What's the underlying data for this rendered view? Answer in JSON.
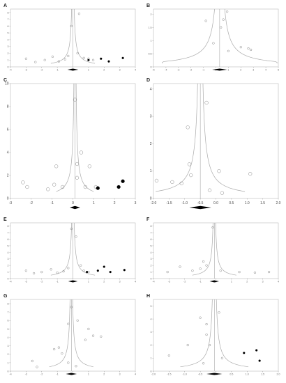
{
  "chart_data": [
    {
      "type": "scatter",
      "label": "A",
      "xticks": [
        "-4",
        "-3",
        "-2",
        "-1",
        "0",
        "1",
        "2",
        "3",
        "4"
      ],
      "yticks": [
        "0",
        "1",
        "2",
        "3",
        "4",
        "5",
        "6",
        "7",
        "8"
      ],
      "xlim": [
        -4,
        4
      ],
      "ylim": [
        0,
        8.5
      ],
      "center": 0,
      "open": [
        [
          -3.0,
          1.2
        ],
        [
          -2.4,
          0.7
        ],
        [
          -1.8,
          1.0
        ],
        [
          -1.3,
          1.5
        ],
        [
          -0.9,
          0.8
        ],
        [
          -0.5,
          1.1
        ],
        [
          -0.3,
          1.6
        ],
        [
          -0.1,
          6.0
        ],
        [
          0.3,
          2.0
        ],
        [
          0.4,
          7.8
        ],
        [
          0.7,
          1.3
        ],
        [
          1.0,
          1.2
        ],
        [
          1.3,
          1.0
        ]
      ],
      "filled": [
        [
          1.0,
          1.0
        ],
        [
          1.8,
          1.2
        ],
        [
          2.3,
          0.8
        ],
        [
          3.2,
          1.3
        ]
      ],
      "diamond": {
        "x": 0,
        "halfwidth": 0.35
      }
    },
    {
      "type": "scatter",
      "label": "B",
      "xticks": [
        "-5",
        "-4",
        "-3",
        "-2",
        "-1",
        "0",
        "1",
        "2",
        "3",
        "4",
        "5"
      ],
      "yticks": [
        "0",
        "0.5",
        "1",
        "1.5",
        "2"
      ],
      "xlim": [
        -5,
        5
      ],
      "ylim": [
        0,
        2.2
      ],
      "center": 0.3,
      "open": [
        [
          -0.8,
          1.75
        ],
        [
          0.4,
          1.5
        ],
        [
          0.6,
          1.8
        ],
        [
          -0.2,
          0.9
        ],
        [
          0.9,
          2.1
        ],
        [
          1.0,
          0.6
        ],
        [
          2.0,
          0.75
        ],
        [
          2.6,
          0.7
        ],
        [
          2.8,
          0.65
        ]
      ],
      "filled": [],
      "diamond": {
        "x": 0.3,
        "halfwidth": 0.6
      }
    },
    {
      "type": "scatter",
      "label": "C",
      "xticks": [
        "-3",
        "-2",
        "-1",
        "0",
        "1",
        "2",
        "3"
      ],
      "yticks": [
        "0",
        "2",
        "4",
        "6",
        "8",
        "10"
      ],
      "xlim": [
        -3,
        3
      ],
      "ylim": [
        0,
        10
      ],
      "center": 0.1,
      "open": [
        [
          -2.4,
          1.4
        ],
        [
          -2.2,
          1.0
        ],
        [
          -1.2,
          0.8
        ],
        [
          -0.8,
          2.8
        ],
        [
          -0.9,
          1.2
        ],
        [
          -0.5,
          1.0
        ],
        [
          0.1,
          8.6
        ],
        [
          0.2,
          3.0
        ],
        [
          0.2,
          1.8
        ],
        [
          0.4,
          4.0
        ],
        [
          0.6,
          1.0
        ],
        [
          0.8,
          2.8
        ],
        [
          1.1,
          1.0
        ]
      ],
      "filled": [
        [
          1.2,
          0.9
        ],
        [
          2.2,
          1.0
        ],
        [
          2.4,
          1.5
        ]
      ],
      "diamond": {
        "x": 0.1,
        "halfwidth": 0.25
      }
    },
    {
      "type": "scatter",
      "label": "D",
      "xticks": [
        "-2.0",
        "-1.5",
        "-1.0",
        "-0.5",
        "0.0",
        "0.5",
        "1.0",
        "1.5",
        "2.0"
      ],
      "yticks": [
        "0",
        "1",
        "2",
        "3",
        "4"
      ],
      "xlim": [
        -2,
        2
      ],
      "ylim": [
        0,
        4.2
      ],
      "center": -0.5,
      "open": [
        [
          -1.9,
          0.65
        ],
        [
          -1.4,
          0.6
        ],
        [
          -1.1,
          0.55
        ],
        [
          -0.9,
          2.6
        ],
        [
          -0.85,
          1.25
        ],
        [
          -0.8,
          0.85
        ],
        [
          -0.3,
          3.5
        ],
        [
          -0.2,
          0.3
        ],
        [
          0.1,
          1.0
        ],
        [
          0.2,
          0.2
        ],
        [
          1.1,
          0.9
        ]
      ],
      "filled": [],
      "diamond": {
        "x": -0.5,
        "halfwidth": 0.35
      }
    },
    {
      "type": "scatter",
      "label": "E",
      "xticks": [
        "-4",
        "-3",
        "-2",
        "-1",
        "0",
        "1",
        "2",
        "3",
        "4"
      ],
      "yticks": [
        "0",
        "1",
        "2",
        "3",
        "4",
        "5",
        "6",
        "7",
        "8"
      ],
      "xlim": [
        -4,
        4
      ],
      "ylim": [
        0,
        8.5
      ],
      "center": 0,
      "open": [
        [
          -3.0,
          1.2
        ],
        [
          -2.5,
          0.8
        ],
        [
          -2.0,
          1.0
        ],
        [
          -1.4,
          1.4
        ],
        [
          -1.0,
          0.9
        ],
        [
          -0.6,
          1.1
        ],
        [
          -0.3,
          1.6
        ],
        [
          -0.1,
          7.6
        ],
        [
          0.2,
          6.4
        ],
        [
          0.5,
          2.0
        ],
        [
          0.7,
          1.2
        ],
        [
          1.0,
          1.0
        ]
      ],
      "filled": [
        [
          0.9,
          1.0
        ],
        [
          1.6,
          1.2
        ],
        [
          2.0,
          1.8
        ],
        [
          2.4,
          1.0
        ],
        [
          3.3,
          1.3
        ]
      ],
      "diamond": {
        "x": 0,
        "halfwidth": 0.3
      }
    },
    {
      "type": "scatter",
      "label": "F",
      "xticks": [
        "-4",
        "-3",
        "-2",
        "-1",
        "0",
        "1",
        "2",
        "3",
        "4"
      ],
      "yticks": [
        "0",
        "1",
        "2",
        "3",
        "4",
        "5",
        "6",
        "7",
        "8"
      ],
      "xlim": [
        -4,
        4
      ],
      "ylim": [
        0,
        8.5
      ],
      "center": -0.1,
      "open": [
        [
          -3.1,
          1.0
        ],
        [
          -2.3,
          1.8
        ],
        [
          -1.5,
          1.2
        ],
        [
          -1.0,
          1.5
        ],
        [
          -0.8,
          2.6
        ],
        [
          -0.6,
          2.0
        ],
        [
          -0.2,
          7.8
        ],
        [
          0.3,
          1.2
        ],
        [
          1.5,
          1.0
        ],
        [
          2.5,
          0.9
        ],
        [
          3.4,
          1.0
        ]
      ],
      "filled": [],
      "diamond": {
        "x": -0.1,
        "halfwidth": 0.3
      }
    },
    {
      "type": "scatter",
      "label": "G",
      "xticks": [
        "-4",
        "-3",
        "-2",
        "-1",
        "0",
        "1",
        "2",
        "3",
        "4"
      ],
      "yticks": [
        "0",
        "1",
        "2",
        "3",
        "4",
        "5",
        "6",
        "7",
        "8"
      ],
      "xlim": [
        -4,
        4
      ],
      "ylim": [
        0,
        8.5
      ],
      "center": -0.1,
      "open": [
        [
          -2.6,
          1.2
        ],
        [
          -2.3,
          0.5
        ],
        [
          -1.2,
          2.6
        ],
        [
          -0.9,
          2.8
        ],
        [
          -0.7,
          2.1
        ],
        [
          -0.3,
          5.6
        ],
        [
          -0.1,
          7.6
        ],
        [
          0.3,
          6.0
        ],
        [
          0.8,
          3.7
        ],
        [
          1.0,
          5.0
        ],
        [
          1.3,
          4.2
        ],
        [
          1.8,
          4.1
        ],
        [
          -0.3,
          1.0
        ],
        [
          0.2,
          0.6
        ]
      ],
      "filled": [],
      "diamond": {
        "x": -0.1,
        "halfwidth": 0.35
      }
    },
    {
      "type": "scatter",
      "label": "H",
      "xticks": [
        "-2.0",
        "-1.5",
        "-1.0",
        "-0.5",
        "0.0",
        "0.5",
        "1.0",
        "1.5",
        "2.0"
      ],
      "yticks": [
        "0",
        "1",
        "2",
        "3",
        "4",
        "5"
      ],
      "xlim": [
        -2,
        2
      ],
      "ylim": [
        0,
        5.5
      ],
      "center": -0.05,
      "open": [
        [
          -1.5,
          1.2
        ],
        [
          -0.9,
          2.0
        ],
        [
          -0.5,
          4.1
        ],
        [
          -0.3,
          3.6
        ],
        [
          -0.3,
          2.8
        ],
        [
          -0.2,
          2.0
        ],
        [
          0.1,
          4.5
        ],
        [
          0.2,
          1.0
        ],
        [
          -0.4,
          0.6
        ]
      ],
      "filled": [
        [
          0.9,
          1.4
        ],
        [
          1.3,
          1.6
        ],
        [
          1.4,
          0.8
        ]
      ],
      "diamond": {
        "x": -0.05,
        "halfwidth": 0.25
      }
    }
  ]
}
